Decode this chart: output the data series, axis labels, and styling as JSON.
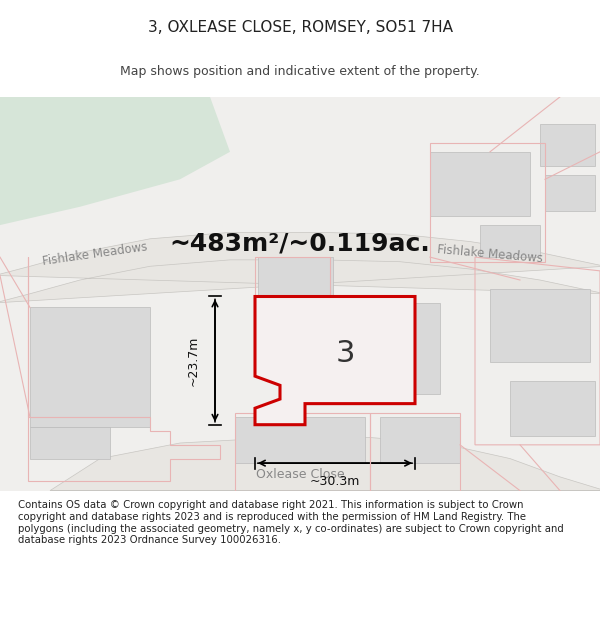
{
  "title": "3, OXLEASE CLOSE, ROMSEY, SO51 7HA",
  "subtitle": "Map shows position and indicative extent of the property.",
  "area_text": "~483m²/~0.119ac.",
  "dimension_h": "~23.7m",
  "dimension_w": "~30.3m",
  "plot_label": "3",
  "road_label_left": "Fishlake Meadows",
  "road_label_right": "Fishlake Meadows",
  "road_label_bottom": "Oxlease Close",
  "copyright_text": "Contains OS data © Crown copyright and database right 2021. This information is subject to Crown copyright and database rights 2023 and is reproduced with the permission of HM Land Registry. The polygons (including the associated geometry, namely x, y co-ordinates) are subject to Crown copyright and database rights 2023 Ordnance Survey 100026316.",
  "bg_color": "#f0efed",
  "map_bg": "#f0efed",
  "green_patch_color": "#d6e5d8",
  "road_color": "#e8e6e2",
  "building_color": "#d9d9d9",
  "plot_outline_color": "#e8b4b4",
  "subject_outline_color": "#cc0000",
  "road_fill_color": "#dddbd7",
  "title_fontsize": 11,
  "subtitle_fontsize": 9,
  "area_fontsize": 18,
  "label_fontsize": 9,
  "copyright_fontsize": 7.5
}
